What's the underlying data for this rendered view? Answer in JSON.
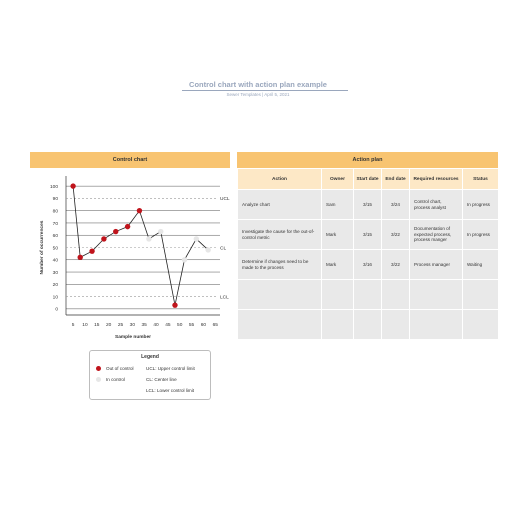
{
  "header": {
    "title": "Control chart with action plan example",
    "subtitle": "Sewer Templates | April 5, 2021"
  },
  "chart_panel": {
    "title": "Control chart"
  },
  "plan_panel": {
    "title": "Action plan"
  },
  "chart_data": {
    "type": "line",
    "xlabel": "Sample number",
    "ylabel": "Number of occurrences",
    "x_ticks": [
      5,
      10,
      15,
      20,
      25,
      30,
      35,
      40,
      45,
      50,
      55,
      60,
      65
    ],
    "y_ticks": [
      0,
      10,
      20,
      30,
      40,
      50,
      60,
      70,
      80,
      90,
      100
    ],
    "xlim": [
      2,
      67
    ],
    "ylim": [
      -5,
      105
    ],
    "limits": [
      {
        "label": "UCL",
        "value": 90,
        "style": "dashed"
      },
      {
        "label": "CL",
        "value": 50,
        "style": "dashed"
      },
      {
        "label": "LCL",
        "value": 10,
        "style": "dashed"
      }
    ],
    "grid": true,
    "points": [
      {
        "x": 5,
        "y": 100,
        "status": "out"
      },
      {
        "x": 8,
        "y": 42,
        "status": "out"
      },
      {
        "x": 13,
        "y": 47,
        "status": "out"
      },
      {
        "x": 18,
        "y": 57,
        "status": "out"
      },
      {
        "x": 23,
        "y": 63,
        "status": "out"
      },
      {
        "x": 28,
        "y": 67,
        "status": "out"
      },
      {
        "x": 33,
        "y": 80,
        "status": "out"
      },
      {
        "x": 37,
        "y": 57,
        "status": "in"
      },
      {
        "x": 42,
        "y": 63,
        "status": "in"
      },
      {
        "x": 48,
        "y": 3,
        "status": "out"
      },
      {
        "x": 52,
        "y": 40,
        "status": "in"
      },
      {
        "x": 57,
        "y": 57,
        "status": "in"
      },
      {
        "x": 62,
        "y": 48,
        "status": "in"
      }
    ],
    "colors": {
      "out": "#c0141c",
      "in": "#e6e6e6",
      "line": "#222222",
      "limit": "#999999"
    }
  },
  "legend": {
    "title": "Legend",
    "out_label": "Out of control",
    "in_label": "In control",
    "ucl_text": "UCL: Upper control limit",
    "cl_text": "CL: Center line",
    "lcl_text": "LCL: Lower control limit"
  },
  "plan": {
    "columns": [
      "Action",
      "Owner",
      "Start date",
      "End date",
      "Required resources",
      "Status"
    ],
    "rows": [
      {
        "action": "Analyze chart",
        "owner": "Sam",
        "start": "3/15",
        "end": "3/24",
        "resources": "Control chart, process analyst",
        "status": "In progress"
      },
      {
        "action": "Investigate the cause for the out-of-control metric",
        "owner": "Mark",
        "start": "3/15",
        "end": "3/22",
        "resources": "Documentation of expected process, process manger",
        "status": "In progress"
      },
      {
        "action": "Determine if changes need to be made to the process",
        "owner": "Mark",
        "start": "3/16",
        "end": "3/22",
        "resources": "Process manager",
        "status": "Waiting"
      },
      {
        "action": "",
        "owner": "",
        "start": "",
        "end": "",
        "resources": "",
        "status": ""
      },
      {
        "action": "",
        "owner": "",
        "start": "",
        "end": "",
        "resources": "",
        "status": ""
      }
    ]
  }
}
